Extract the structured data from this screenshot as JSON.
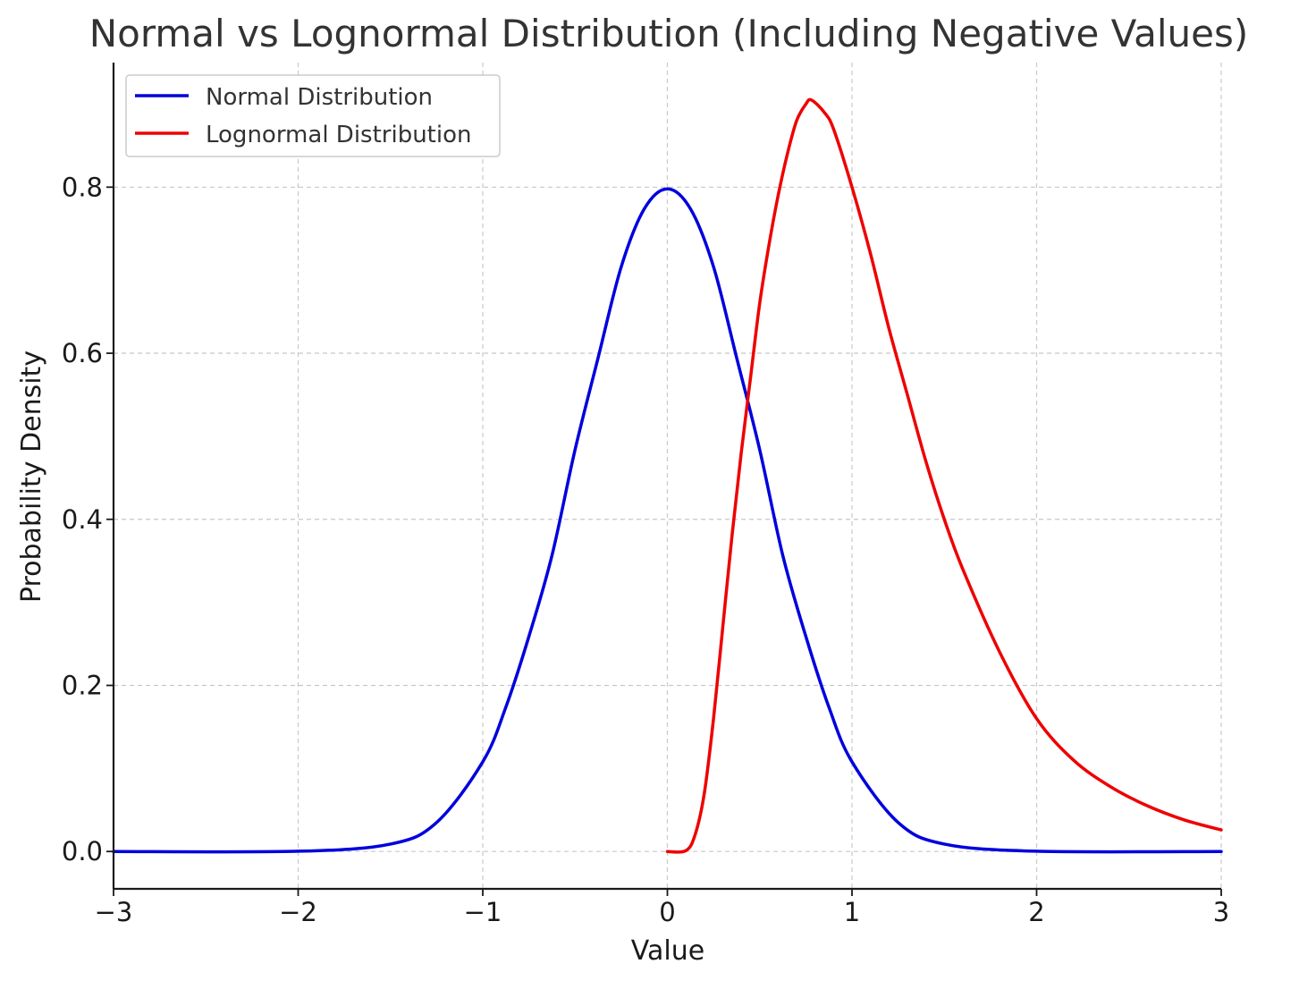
{
  "chart_data": {
    "type": "line",
    "title": "Normal vs Lognormal Distribution (Including Negative Values)",
    "xlabel": "Value",
    "ylabel": "Probability Density",
    "xlim": [
      -3,
      3
    ],
    "ylim": [
      -0.045,
      0.95
    ],
    "xticks": [
      -3,
      -2,
      -1,
      0,
      1,
      2,
      3
    ],
    "xtick_labels": [
      "−3",
      "−2",
      "−1",
      "0",
      "1",
      "2",
      "3"
    ],
    "yticks": [
      0.0,
      0.2,
      0.4,
      0.6,
      0.8
    ],
    "ytick_labels": [
      "0.0",
      "0.2",
      "0.4",
      "0.6",
      "0.8"
    ],
    "grid": true,
    "legend_position": "top-left",
    "series": [
      {
        "name": "Normal Distribution",
        "color": "#0000dd",
        "x": [
          -3.0,
          -2.0,
          -1.5,
          -1.25,
          -1.0,
          -0.875,
          -0.75,
          -0.625,
          -0.5,
          -0.375,
          -0.25,
          -0.125,
          0.0,
          0.125,
          0.25,
          0.375,
          0.5,
          0.625,
          0.75,
          0.875,
          1.0,
          1.25,
          1.5,
          2.0,
          3.0
        ],
        "y": [
          0.0,
          0.0003,
          0.0089,
          0.0349,
          0.108,
          0.1738,
          0.259,
          0.3566,
          0.4839,
          0.5947,
          0.7041,
          0.7739,
          0.7979,
          0.7739,
          0.7041,
          0.5947,
          0.4839,
          0.3566,
          0.259,
          0.1738,
          0.108,
          0.0349,
          0.0089,
          0.0003,
          0.0
        ]
      },
      {
        "name": "Lognormal Distribution",
        "color": "#ee0000",
        "x": [
          0.0,
          0.1,
          0.15,
          0.2,
          0.25,
          0.3,
          0.35,
          0.4,
          0.45,
          0.5,
          0.55,
          0.6,
          0.65,
          0.7,
          0.75,
          0.78,
          0.85,
          0.9,
          1.0,
          1.1,
          1.2,
          1.3,
          1.4,
          1.5,
          1.6,
          1.8,
          2.0,
          2.2,
          2.4,
          2.6,
          2.8,
          3.0
        ],
        "y": [
          0.0,
          0.001,
          0.02,
          0.07,
          0.16,
          0.27,
          0.38,
          0.48,
          0.57,
          0.66,
          0.73,
          0.79,
          0.84,
          0.88,
          0.9,
          0.905,
          0.89,
          0.87,
          0.8,
          0.72,
          0.63,
          0.55,
          0.47,
          0.4,
          0.34,
          0.24,
          0.16,
          0.11,
          0.078,
          0.055,
          0.038,
          0.026
        ]
      }
    ]
  }
}
